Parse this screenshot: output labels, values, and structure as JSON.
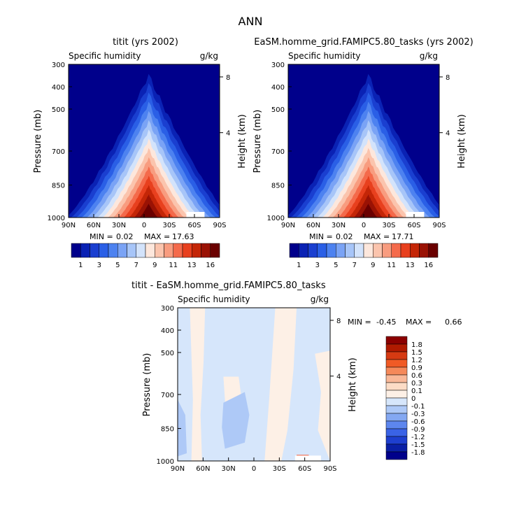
{
  "figure_title": "ANN",
  "chart_data": [
    {
      "type": "heatmap",
      "title": "titit (yrs 2002)",
      "field_label": "Specific humidity",
      "units": "g/kg",
      "ylabel": "Pressure (mb)",
      "ylabel_right": "Height (km)",
      "x_ticks": [
        "90N",
        "60N",
        "30N",
        "0",
        "30S",
        "60S",
        "90S"
      ],
      "y_ticks": [
        "300",
        "400",
        "500",
        "700",
        "850",
        "1000"
      ],
      "y_ticks_right": [
        "8",
        "4"
      ],
      "stats": {
        "min_label": "MIN =",
        "min": "0.02",
        "max_label": "MAX =",
        "max": "17.63"
      },
      "colorbar": {
        "labels": [
          "1",
          "3",
          "5",
          "7",
          "9",
          "11",
          "13",
          "16"
        ]
      }
    },
    {
      "type": "heatmap",
      "title": "EaSM.homme_grid.FAMIPC5.80_tasks (yrs 2002)",
      "field_label": "Specific humidity",
      "units": "g/kg",
      "ylabel": "Pressure (mb)",
      "ylabel_right": "Height (km)",
      "x_ticks": [
        "90N",
        "60N",
        "30N",
        "0",
        "30S",
        "60S",
        "90S"
      ],
      "y_ticks": [
        "300",
        "400",
        "500",
        "700",
        "850",
        "1000"
      ],
      "y_ticks_right": [
        "8",
        "4"
      ],
      "stats": {
        "min_label": "MIN =",
        "min": "0.02",
        "max_label": "MAX =",
        "max": "17.71"
      },
      "colorbar": {
        "labels": [
          "1",
          "3",
          "5",
          "7",
          "9",
          "11",
          "13",
          "16"
        ]
      }
    },
    {
      "type": "heatmap",
      "title": "titit - EaSM.homme_grid.FAMIPC5.80_tasks",
      "field_label": "Specific humidity",
      "units": "g/kg",
      "ylabel": "Pressure (mb)",
      "ylabel_right": "Height (km)",
      "x_ticks": [
        "90N",
        "60N",
        "30N",
        "0",
        "30S",
        "60S",
        "90S"
      ],
      "y_ticks": [
        "300",
        "400",
        "500",
        "700",
        "850",
        "1000"
      ],
      "y_ticks_right": [
        "8",
        "4"
      ],
      "stats": {
        "min_label": "MIN =",
        "min": "-0.45",
        "max_label": "MAX =",
        "max": "0.66"
      },
      "colorbar": {
        "labels": [
          "1.8",
          "1.5",
          "1.2",
          "0.9",
          "0.6",
          "0.3",
          "0.1",
          "0",
          "-0.1",
          "-0.3",
          "-0.6",
          "-0.9",
          "-1.2",
          "-1.5",
          "-1.8"
        ]
      }
    }
  ],
  "colors": {
    "seq": [
      "#00008b",
      "#0a22b4",
      "#1a3fd0",
      "#2a5fe6",
      "#4d82f0",
      "#7aa3f5",
      "#a7c5f8",
      "#d3e3fb",
      "#fde7dc",
      "#fbc4ad",
      "#f89c7f",
      "#f46a4b",
      "#e8401e",
      "#c42607",
      "#9a1204",
      "#6a0000"
    ],
    "div": [
      "#8b0000",
      "#b01a00",
      "#d63a12",
      "#f05a25",
      "#f5895a",
      "#f9b898",
      "#fcdcc6",
      "#fdf0e6",
      "#d6e6fb",
      "#aec9f7",
      "#84a8f2",
      "#5d86ee",
      "#3a63e6",
      "#1e3fcf",
      "#0a1fa5",
      "#00008b"
    ]
  }
}
